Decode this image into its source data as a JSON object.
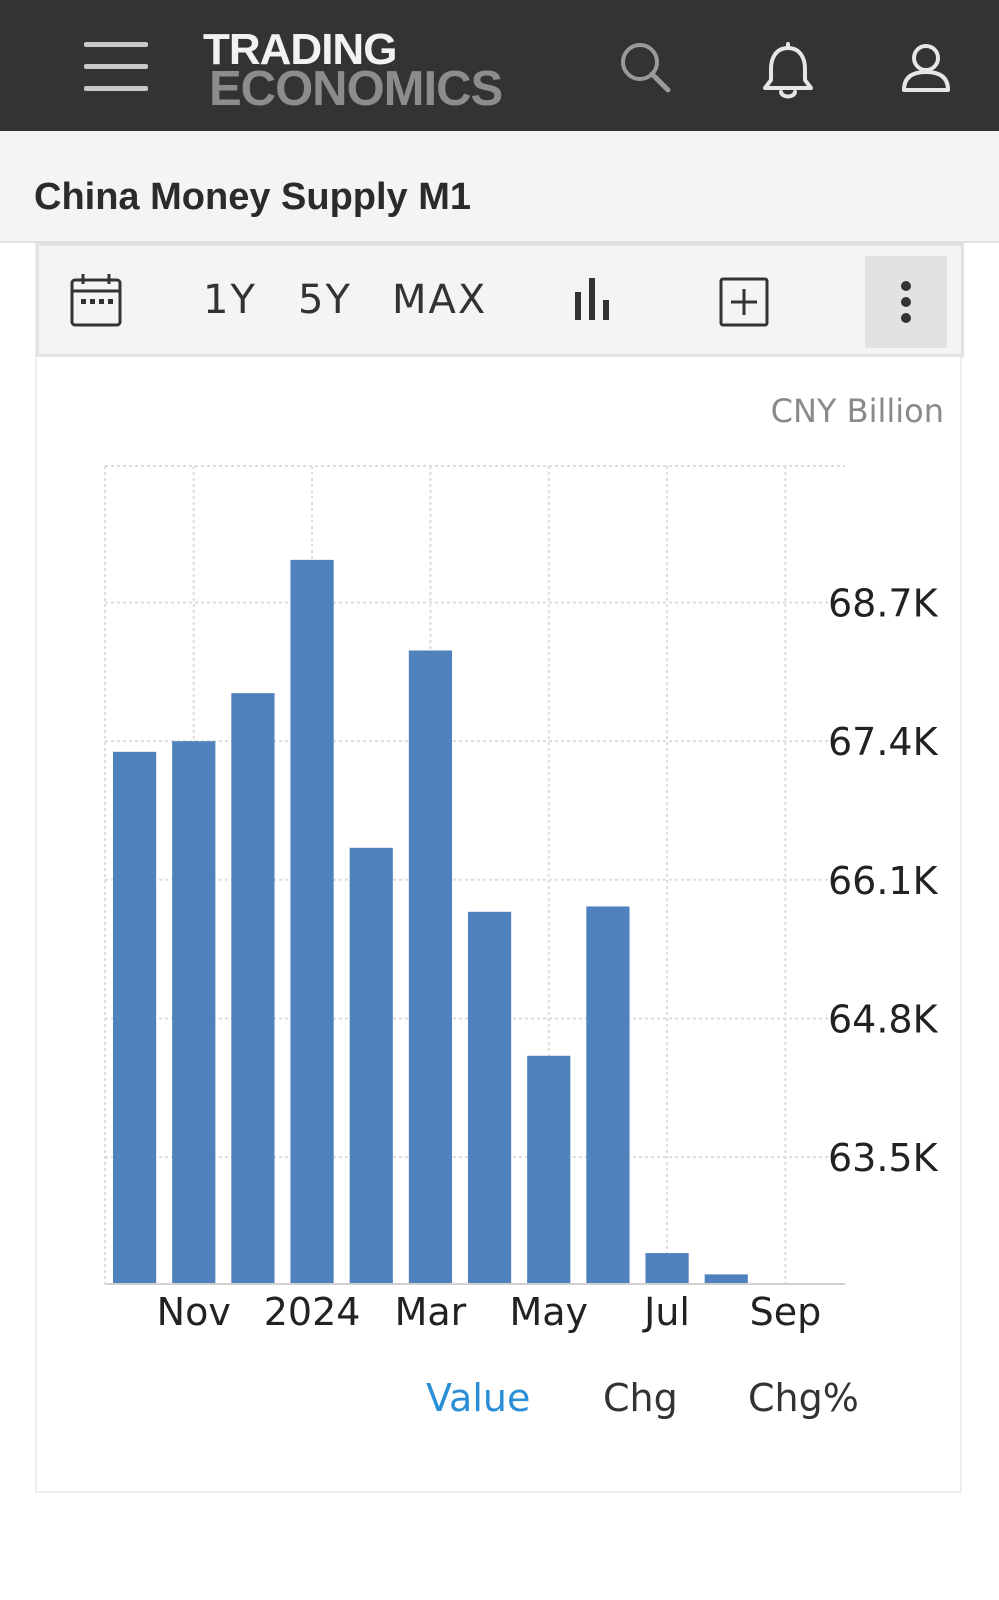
{
  "header": {
    "logo_line1": "TRADING",
    "logo_line2": "ECONOMICS",
    "icons": [
      "menu-icon",
      "search-icon",
      "bell-icon",
      "user-icon"
    ]
  },
  "page": {
    "title": "China Money Supply M1"
  },
  "toolbar": {
    "btn_1y": "1Y",
    "btn_5y": "5Y",
    "btn_max": "MAX",
    "icons": [
      "calendar-icon",
      "bar-chart-icon",
      "add-box-icon",
      "more-vertical-icon"
    ]
  },
  "chart_data": {
    "type": "bar",
    "unit_label": "CNY Billion",
    "series": [
      {
        "values": [
          67300,
          67400,
          67850,
          69100,
          66400,
          68250,
          65800,
          64450,
          65850,
          62600,
          62400,
          62200
        ]
      }
    ],
    "x_tick_labels": [
      "Nov",
      "2024",
      "Mar",
      "May",
      "Jul",
      "Sep"
    ],
    "y_tick_labels": [
      "68.7K",
      "67.4K",
      "66.1K",
      "64.8K",
      "63.5K"
    ],
    "y_ticks": [
      68700,
      67400,
      66100,
      64800,
      63500
    ],
    "ylim": [
      62310,
      69980
    ],
    "y_axis_position": "right",
    "grid": true,
    "bar_color": "#4f81bd"
  },
  "tabs": {
    "value": "Value",
    "chg": "Chg",
    "chg_pct": "Chg%",
    "active_color": "#2a8fd6",
    "inactive_color": "#333333"
  }
}
